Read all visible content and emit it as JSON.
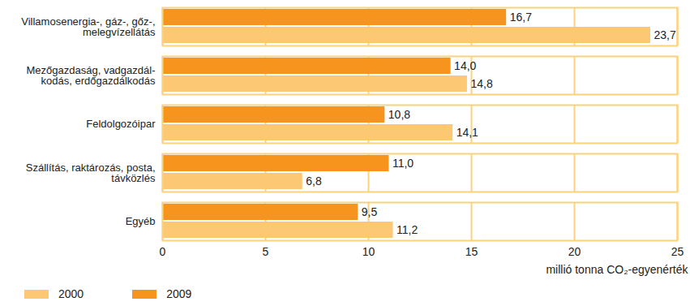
{
  "chart_data": {
    "type": "bar",
    "orientation": "horizontal",
    "categories": [
      "Villamosenergia-, gáz-, gőz-,\nmelegvízellátás",
      "Mezőgazdaság, vadgazdál-\nkodás, erdőgazdálkodás",
      "Feldolgozóipar",
      "Szállítás, raktározás, posta,\ntávközlés",
      "Egyéb"
    ],
    "series": [
      {
        "name": "2000",
        "color": "#fcc874",
        "values": [
          23.7,
          14.8,
          14.1,
          6.8,
          11.2
        ],
        "value_labels": [
          "23,7",
          "14,8",
          "14,1",
          "6,8",
          "11,2"
        ]
      },
      {
        "name": "2009",
        "color": "#f7941d",
        "values": [
          16.7,
          14.0,
          10.8,
          11.0,
          9.5
        ],
        "value_labels": [
          "16,7",
          "14,0",
          "10,8",
          "11,0",
          "9,5"
        ]
      }
    ],
    "x_label": "millió tonna CO₂-egyenérték",
    "xlim": [
      0,
      25
    ],
    "xticks": [
      0,
      5,
      10,
      15,
      20,
      25
    ],
    "grid": true,
    "data_labels": true,
    "legend": "bottom-left"
  }
}
